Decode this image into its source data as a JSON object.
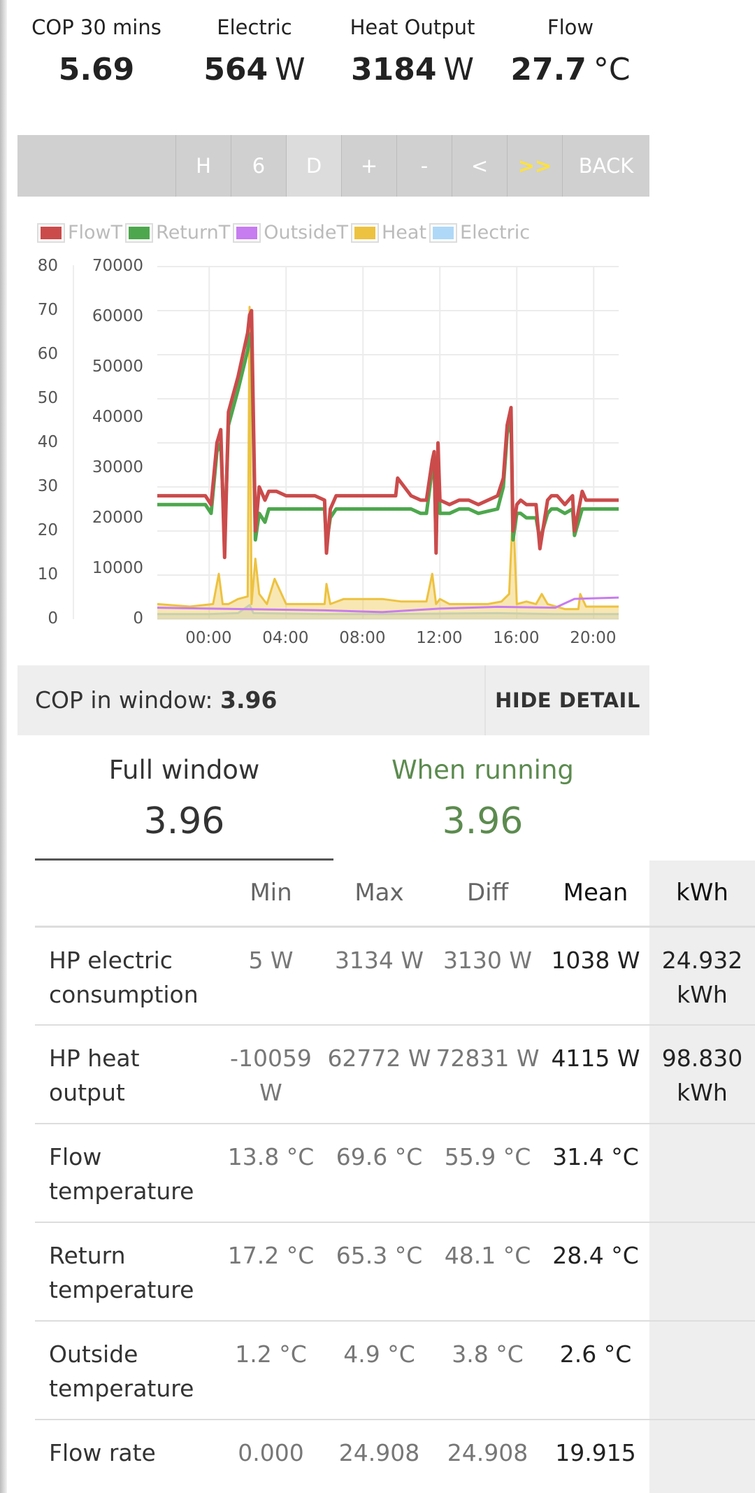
{
  "stats": [
    {
      "label": "COP 30 mins",
      "value": "5.69",
      "unit": ""
    },
    {
      "label": "Electric",
      "value": "564",
      "unit": "W"
    },
    {
      "label": "Heat Output",
      "value": "3184",
      "unit": "W"
    },
    {
      "label": "Flow",
      "value": "27.7",
      "unit": "°C"
    }
  ],
  "toolbar": {
    "buttons": [
      "H",
      "6",
      "D",
      "+",
      "-",
      "<",
      ">>",
      "BACK"
    ],
    "active": "D"
  },
  "chart_data": {
    "type": "line",
    "legend": [
      "FlowT",
      "ReturnT",
      "OutsideT",
      "Heat",
      "Electric"
    ],
    "colors": {
      "FlowT": "#cb4b4b",
      "ReturnT": "#4da74d",
      "OutsideT": "#c77cf0",
      "Heat": "#edc240",
      "Electric": "#afd8f8"
    },
    "left_axis": {
      "ticks": [
        "0",
        "10",
        "20",
        "30",
        "40",
        "50",
        "60",
        "70",
        "80"
      ],
      "range": [
        0,
        80
      ]
    },
    "right_axis": {
      "ticks": [
        "0",
        "10000",
        "20000",
        "30000",
        "40000",
        "50000",
        "60000",
        "70000"
      ],
      "range": [
        0,
        70000
      ]
    },
    "x_ticks": [
      "00:00",
      "04:00",
      "08:00",
      "12:00",
      "16:00",
      "20:00"
    ],
    "x_range_hours": [
      -2.7,
      21.3
    ],
    "series": [
      {
        "name": "FlowT",
        "axis": "left",
        "x": [
          -2.7,
          -1.5,
          -0.2,
          0.1,
          0.4,
          0.6,
          0.8,
          1.0,
          1.5,
          2.0,
          2.1,
          2.2,
          2.4,
          2.6,
          2.9,
          3.1,
          3.5,
          4.0,
          5.5,
          6.0,
          6.1,
          6.3,
          6.6,
          7.0,
          8.0,
          9.0,
          9.7,
          9.8,
          10.5,
          11.0,
          11.3,
          11.6,
          11.7,
          11.8,
          11.9,
          12.0,
          12.5,
          13.0,
          13.5,
          14.0,
          15.0,
          15.3,
          15.5,
          15.7,
          15.8,
          16.0,
          16.2,
          16.5,
          17.0,
          17.2,
          17.6,
          17.8,
          18.1,
          18.5,
          18.9,
          19.0,
          19.4,
          19.6,
          20.0,
          20.5,
          21.3
        ],
        "y": [
          28,
          28,
          28,
          26,
          40,
          43,
          14,
          47,
          55,
          65,
          69,
          70,
          20,
          30,
          27,
          29,
          29,
          28,
          28,
          27,
          15,
          25,
          28,
          28,
          28,
          28,
          28,
          32,
          28,
          27,
          27,
          36,
          38,
          15,
          40,
          27,
          26,
          27,
          27,
          26,
          28,
          32,
          44,
          48,
          20,
          26,
          27,
          26,
          26,
          16,
          27,
          28,
          28,
          26,
          28,
          20,
          29,
          27,
          27,
          27,
          27
        ]
      },
      {
        "name": "ReturnT",
        "axis": "left",
        "x": [
          -2.7,
          -1.5,
          -0.2,
          0.1,
          0.4,
          0.6,
          0.8,
          1.0,
          1.5,
          2.0,
          2.1,
          2.2,
          2.4,
          2.6,
          2.9,
          3.1,
          3.5,
          4.0,
          5.5,
          6.0,
          6.1,
          6.3,
          6.6,
          7.0,
          8.0,
          9.0,
          9.7,
          10.5,
          11.0,
          11.3,
          11.6,
          11.7,
          11.8,
          11.9,
          12.0,
          12.5,
          13.0,
          13.5,
          14.0,
          15.0,
          15.3,
          15.5,
          15.7,
          15.8,
          16.0,
          16.2,
          16.5,
          17.0,
          17.2,
          17.6,
          17.8,
          18.1,
          18.5,
          18.9,
          19.0,
          19.4,
          19.6,
          20.0,
          20.5,
          21.3
        ],
        "y": [
          26,
          26,
          26,
          24,
          38,
          40,
          18,
          44,
          52,
          61,
          64,
          65,
          18,
          24,
          22,
          25,
          25,
          25,
          25,
          25,
          17,
          23,
          25,
          25,
          25,
          25,
          25,
          25,
          24,
          24,
          34,
          36,
          17,
          38,
          24,
          24,
          25,
          25,
          24,
          25,
          30,
          42,
          46,
          18,
          24,
          24,
          23,
          23,
          18,
          24,
          25,
          25,
          24,
          25,
          19,
          25,
          25,
          25,
          25,
          25
        ]
      },
      {
        "name": "OutsideT",
        "axis": "left",
        "x": [
          -2.7,
          0,
          3,
          6,
          9,
          12,
          15,
          18,
          19,
          21.3
        ],
        "y": [
          2.6,
          2.4,
          2.2,
          2.0,
          1.6,
          2.4,
          2.8,
          2.6,
          4.6,
          4.9
        ]
      },
      {
        "name": "Heat",
        "axis": "right",
        "x": [
          -2.7,
          -1.0,
          0.2,
          0.5,
          0.7,
          1.0,
          1.5,
          2.0,
          2.1,
          2.2,
          2.4,
          2.6,
          3.0,
          3.4,
          4.0,
          5.5,
          6.0,
          6.1,
          6.3,
          7.0,
          9.0,
          10.0,
          11.3,
          11.6,
          11.8,
          12.0,
          12.5,
          13.5,
          14.5,
          15.2,
          15.6,
          15.8,
          16.0,
          16.5,
          17.0,
          17.3,
          17.6,
          18.5,
          18.8,
          19.2,
          19.3,
          19.6,
          21.3
        ],
        "y": [
          3000,
          2500,
          3000,
          9000,
          3000,
          3000,
          4000,
          4500,
          62000,
          3000,
          12000,
          5000,
          3000,
          8000,
          3000,
          3000,
          3000,
          7000,
          3000,
          4000,
          4000,
          3500,
          3500,
          9000,
          3000,
          4000,
          3000,
          3000,
          3000,
          3500,
          5000,
          22000,
          3000,
          3500,
          3000,
          5000,
          3000,
          2000,
          2000,
          2000,
          5000,
          2500,
          2500
        ]
      },
      {
        "name": "Electric",
        "axis": "right",
        "x": [
          -2.7,
          0,
          1.5,
          2.1,
          2.3,
          6,
          9,
          12,
          15,
          18,
          21.3
        ],
        "y": [
          1000,
          1000,
          1200,
          2800,
          1200,
          1000,
          1000,
          1100,
          1200,
          1000,
          1000
        ]
      }
    ]
  },
  "copbar": {
    "label": "COP in window:",
    "value": "3.96",
    "button": "HIDE DETAIL"
  },
  "tabs": {
    "full_label": "Full window",
    "full_value": "3.96",
    "run_label": "When running",
    "run_value": "3.96"
  },
  "table": {
    "headers": [
      "",
      "Min",
      "Max",
      "Diff",
      "Mean",
      "kWh"
    ],
    "rows": [
      {
        "name": "HP electric consumption",
        "min": "5 W",
        "max": "3134 W",
        "diff": "3130 W",
        "mean": "1038 W",
        "kwh": "24.932 kWh"
      },
      {
        "name": "HP heat output",
        "min": "-10059 W",
        "max": "62772 W",
        "diff": "72831 W",
        "mean": "4115 W",
        "kwh": "98.830 kWh"
      },
      {
        "name": "Flow temperature",
        "min": "13.8 °C",
        "max": "69.6 °C",
        "diff": "55.9 °C",
        "mean": "31.4 °C",
        "kwh": ""
      },
      {
        "name": "Return temperature",
        "min": "17.2 °C",
        "max": "65.3 °C",
        "diff": "48.1 °C",
        "mean": "28.4 °C",
        "kwh": ""
      },
      {
        "name": "Outside temperature",
        "min": "1.2 °C",
        "max": "4.9 °C",
        "diff": "3.8 °C",
        "mean": "2.6 °C",
        "kwh": ""
      },
      {
        "name": "Flow rate",
        "min": "0.000",
        "max": "24.908",
        "diff": "24.908",
        "mean": "19.915",
        "kwh": ""
      }
    ]
  }
}
